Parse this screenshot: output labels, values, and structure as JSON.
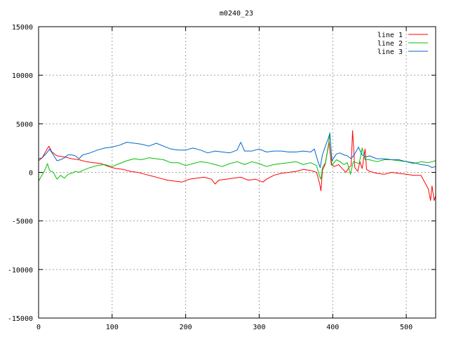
{
  "chart_data": {
    "type": "line",
    "title": "m0240_23",
    "xlabel": "",
    "ylabel": "",
    "xlim": [
      0,
      540
    ],
    "ylim": [
      -15000,
      15000
    ],
    "xticks": [
      0,
      100,
      200,
      300,
      400,
      500
    ],
    "yticks": [
      -15000,
      -10000,
      -5000,
      0,
      5000,
      10000,
      15000
    ],
    "xtick_labels": [
      "0",
      "100",
      "200",
      "300",
      "400",
      "500"
    ],
    "ytick_labels": [
      "-15000",
      "-10000",
      "-5000",
      "0",
      "5000",
      "10000",
      "15000"
    ],
    "grid": true,
    "legend_position": "top-right",
    "series": [
      {
        "name": "line 1",
        "color": "#ff0000",
        "points": [
          [
            0,
            1200
          ],
          [
            5,
            1500
          ],
          [
            10,
            2200
          ],
          [
            14,
            2700
          ],
          [
            18,
            2100
          ],
          [
            25,
            1700
          ],
          [
            35,
            1600
          ],
          [
            45,
            1400
          ],
          [
            55,
            1300
          ],
          [
            65,
            1100
          ],
          [
            75,
            1000
          ],
          [
            85,
            900
          ],
          [
            95,
            600
          ],
          [
            105,
            400
          ],
          [
            115,
            300
          ],
          [
            125,
            100
          ],
          [
            135,
            0
          ],
          [
            145,
            -200
          ],
          [
            155,
            -400
          ],
          [
            165,
            -600
          ],
          [
            175,
            -800
          ],
          [
            185,
            -900
          ],
          [
            195,
            -1000
          ],
          [
            205,
            -700
          ],
          [
            215,
            -600
          ],
          [
            225,
            -500
          ],
          [
            235,
            -700
          ],
          [
            240,
            -1200
          ],
          [
            245,
            -800
          ],
          [
            255,
            -700
          ],
          [
            265,
            -600
          ],
          [
            275,
            -500
          ],
          [
            285,
            -800
          ],
          [
            295,
            -700
          ],
          [
            305,
            -1000
          ],
          [
            310,
            -700
          ],
          [
            320,
            -300
          ],
          [
            330,
            -100
          ],
          [
            340,
            0
          ],
          [
            350,
            100
          ],
          [
            360,
            300
          ],
          [
            370,
            200
          ],
          [
            378,
            0
          ],
          [
            382,
            -1100
          ],
          [
            384,
            -1900
          ],
          [
            386,
            200
          ],
          [
            390,
            900
          ],
          [
            395,
            3200
          ],
          [
            398,
            800
          ],
          [
            402,
            600
          ],
          [
            408,
            800
          ],
          [
            414,
            300
          ],
          [
            418,
            0
          ],
          [
            422,
            500
          ],
          [
            425,
            700
          ],
          [
            427,
            4300
          ],
          [
            430,
            500
          ],
          [
            434,
            100
          ],
          [
            437,
            1100
          ],
          [
            440,
            400
          ],
          [
            444,
            2400
          ],
          [
            446,
            300
          ],
          [
            450,
            100
          ],
          [
            460,
            -100
          ],
          [
            470,
            -200
          ],
          [
            480,
            0
          ],
          [
            490,
            -100
          ],
          [
            500,
            -200
          ],
          [
            510,
            -300
          ],
          [
            520,
            -300
          ],
          [
            530,
            -1700
          ],
          [
            533,
            -2900
          ],
          [
            535,
            -1400
          ],
          [
            538,
            -2900
          ],
          [
            540,
            -2400
          ]
        ]
      },
      {
        "name": "line 2",
        "color": "#00c000",
        "points": [
          [
            0,
            -900
          ],
          [
            3,
            -500
          ],
          [
            7,
            0
          ],
          [
            10,
            500
          ],
          [
            12,
            900
          ],
          [
            15,
            200
          ],
          [
            20,
            0
          ],
          [
            25,
            -700
          ],
          [
            30,
            -300
          ],
          [
            35,
            -600
          ],
          [
            40,
            -200
          ],
          [
            45,
            -100
          ],
          [
            50,
            100
          ],
          [
            55,
            0
          ],
          [
            60,
            200
          ],
          [
            70,
            500
          ],
          [
            80,
            700
          ],
          [
            90,
            800
          ],
          [
            100,
            600
          ],
          [
            110,
            900
          ],
          [
            120,
            1200
          ],
          [
            130,
            1400
          ],
          [
            140,
            1300
          ],
          [
            150,
            1500
          ],
          [
            160,
            1400
          ],
          [
            170,
            1300
          ],
          [
            180,
            1000
          ],
          [
            190,
            1000
          ],
          [
            200,
            700
          ],
          [
            210,
            900
          ],
          [
            220,
            1100
          ],
          [
            230,
            1000
          ],
          [
            240,
            800
          ],
          [
            250,
            600
          ],
          [
            260,
            900
          ],
          [
            270,
            1100
          ],
          [
            280,
            800
          ],
          [
            290,
            1100
          ],
          [
            300,
            900
          ],
          [
            310,
            600
          ],
          [
            320,
            800
          ],
          [
            330,
            900
          ],
          [
            340,
            1000
          ],
          [
            350,
            1100
          ],
          [
            360,
            800
          ],
          [
            370,
            1000
          ],
          [
            378,
            700
          ],
          [
            382,
            -400
          ],
          [
            384,
            -700
          ],
          [
            386,
            500
          ],
          [
            390,
            1000
          ],
          [
            394,
            2600
          ],
          [
            396,
            4100
          ],
          [
            399,
            700
          ],
          [
            405,
            1300
          ],
          [
            410,
            1100
          ],
          [
            415,
            800
          ],
          [
            420,
            1000
          ],
          [
            424,
            -200
          ],
          [
            428,
            1100
          ],
          [
            432,
            1000
          ],
          [
            436,
            900
          ],
          [
            440,
            2500
          ],
          [
            444,
            1300
          ],
          [
            450,
            1300
          ],
          [
            460,
            1100
          ],
          [
            470,
            1300
          ],
          [
            480,
            1300
          ],
          [
            490,
            1200
          ],
          [
            500,
            1100
          ],
          [
            510,
            900
          ],
          [
            520,
            1100
          ],
          [
            530,
            1000
          ],
          [
            540,
            1200
          ]
        ]
      },
      {
        "name": "line 3",
        "color": "#0066cc",
        "points": [
          [
            0,
            1400
          ],
          [
            5,
            1500
          ],
          [
            10,
            1900
          ],
          [
            15,
            2400
          ],
          [
            20,
            1800
          ],
          [
            25,
            1200
          ],
          [
            30,
            1300
          ],
          [
            35,
            1500
          ],
          [
            40,
            1800
          ],
          [
            45,
            1800
          ],
          [
            50,
            1700
          ],
          [
            55,
            1400
          ],
          [
            60,
            1800
          ],
          [
            70,
            2000
          ],
          [
            80,
            2300
          ],
          [
            90,
            2500
          ],
          [
            100,
            2600
          ],
          [
            110,
            2800
          ],
          [
            120,
            3100
          ],
          [
            130,
            3000
          ],
          [
            140,
            2900
          ],
          [
            150,
            2700
          ],
          [
            160,
            3000
          ],
          [
            170,
            2700
          ],
          [
            180,
            2400
          ],
          [
            190,
            2300
          ],
          [
            200,
            2300
          ],
          [
            210,
            2500
          ],
          [
            220,
            2300
          ],
          [
            230,
            2000
          ],
          [
            240,
            2200
          ],
          [
            250,
            2100
          ],
          [
            260,
            2000
          ],
          [
            270,
            2300
          ],
          [
            275,
            3100
          ],
          [
            280,
            2200
          ],
          [
            290,
            2200
          ],
          [
            300,
            2400
          ],
          [
            310,
            2100
          ],
          [
            320,
            2200
          ],
          [
            330,
            2200
          ],
          [
            340,
            2100
          ],
          [
            350,
            2100
          ],
          [
            360,
            2200
          ],
          [
            370,
            2100
          ],
          [
            375,
            2400
          ],
          [
            380,
            1100
          ],
          [
            383,
            500
          ],
          [
            386,
            1800
          ],
          [
            390,
            2700
          ],
          [
            394,
            3500
          ],
          [
            396,
            4000
          ],
          [
            399,
            1200
          ],
          [
            405,
            1900
          ],
          [
            410,
            2000
          ],
          [
            415,
            1800
          ],
          [
            420,
            1700
          ],
          [
            425,
            1400
          ],
          [
            430,
            1900
          ],
          [
            435,
            2600
          ],
          [
            440,
            1800
          ],
          [
            445,
            1600
          ],
          [
            450,
            1700
          ],
          [
            460,
            1400
          ],
          [
            470,
            1400
          ],
          [
            480,
            1300
          ],
          [
            490,
            1300
          ],
          [
            500,
            1100
          ],
          [
            510,
            1000
          ],
          [
            520,
            800
          ],
          [
            530,
            700
          ],
          [
            535,
            500
          ],
          [
            540,
            600
          ]
        ]
      }
    ]
  }
}
